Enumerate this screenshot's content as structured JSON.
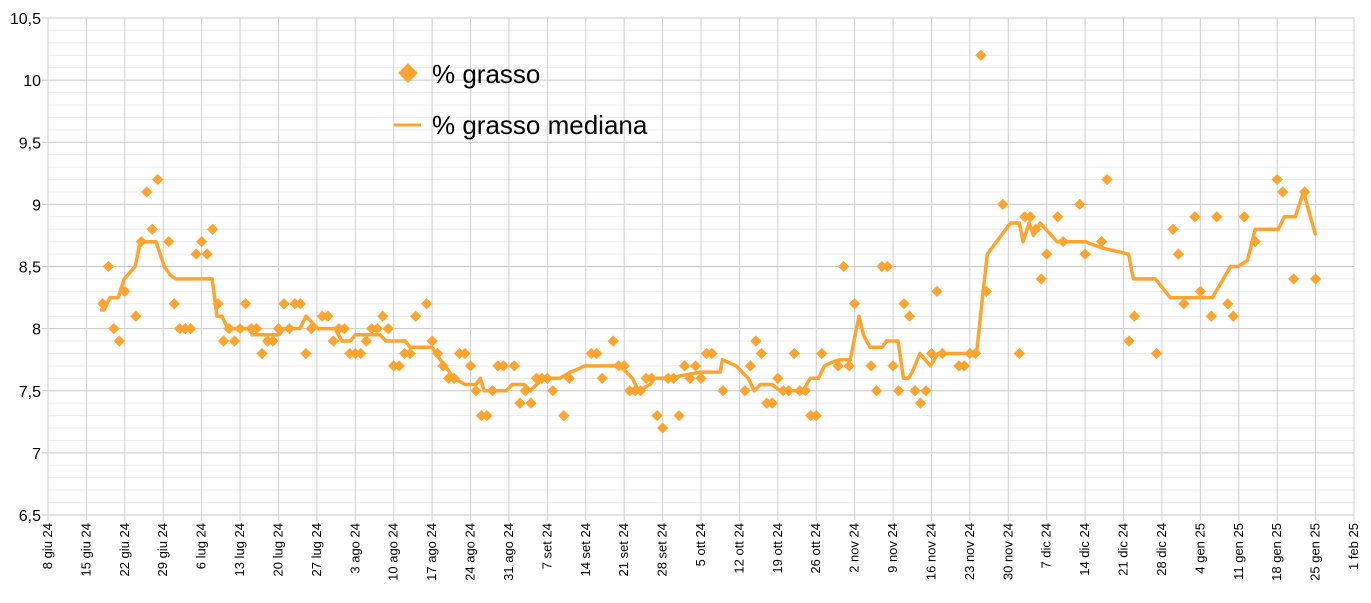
{
  "chart_data": {
    "type": "scatter+line",
    "title": "",
    "xlabel": "",
    "ylabel": "",
    "x_unit": "days since 8 giu 24",
    "xlim": [
      0,
      238
    ],
    "ylim": [
      6.5,
      10.5
    ],
    "y_major_step": 0.5,
    "y_minor_step": 0.1,
    "grid": true,
    "legend_position": "top-center-left",
    "color": "#ffa431",
    "y_tick_labels": [
      "6,5",
      "7",
      "7,5",
      "8",
      "8,5",
      "9",
      "9,5",
      "10",
      "10,5"
    ],
    "x_tick_labels": [
      "8 giu 24",
      "15 giu 24",
      "22 giu 24",
      "29 giu 24",
      "6 lug 24",
      "13 lug 24",
      "20 lug 24",
      "27 lug 24",
      "3 ago 24",
      "10 ago 24",
      "17 ago 24",
      "24 ago 24",
      "31 ago 24",
      "7 set 24",
      "14 set 24",
      "21 set 24",
      "28 set 24",
      "5 ott 24",
      "12 ott 24",
      "19 ott 24",
      "26 ott 24",
      "2 nov 24",
      "9 nov 24",
      "16 nov 24",
      "23 nov 24",
      "30 nov 24",
      "7 dic 24",
      "14 dic 24",
      "21 dic 24",
      "28 dic 24",
      "4 gen 25",
      "11 gen 25",
      "18 gen 25",
      "25 gen 25",
      "1 feb 25"
    ],
    "series": [
      {
        "name": "% grasso",
        "kind": "scatter",
        "marker": "diamond",
        "points": [
          [
            10,
            8.2
          ],
          [
            11,
            8.5
          ],
          [
            12,
            8.0
          ],
          [
            13,
            7.9
          ],
          [
            14,
            8.3
          ],
          [
            16,
            8.1
          ],
          [
            17,
            8.7
          ],
          [
            18,
            9.1
          ],
          [
            19,
            8.8
          ],
          [
            20,
            9.2
          ],
          [
            22,
            8.7
          ],
          [
            23,
            8.2
          ],
          [
            24,
            8.0
          ],
          [
            25,
            8.0
          ],
          [
            26,
            8.0
          ],
          [
            27,
            8.6
          ],
          [
            28,
            8.7
          ],
          [
            29,
            8.6
          ],
          [
            30,
            8.8
          ],
          [
            31,
            8.2
          ],
          [
            32,
            7.9
          ],
          [
            33,
            8.0
          ],
          [
            34,
            7.9
          ],
          [
            35,
            8.0
          ],
          [
            36,
            8.2
          ],
          [
            37,
            8.0
          ],
          [
            38,
            8.0
          ],
          [
            39,
            7.8
          ],
          [
            40,
            7.9
          ],
          [
            41,
            7.9
          ],
          [
            42,
            8.0
          ],
          [
            43,
            8.2
          ],
          [
            44,
            8.0
          ],
          [
            45,
            8.2
          ],
          [
            46,
            8.2
          ],
          [
            47,
            7.8
          ],
          [
            48,
            8.0
          ],
          [
            50,
            8.1
          ],
          [
            51,
            8.1
          ],
          [
            52,
            7.9
          ],
          [
            53,
            8.0
          ],
          [
            54,
            8.0
          ],
          [
            55,
            7.8
          ],
          [
            56,
            7.8
          ],
          [
            57,
            7.8
          ],
          [
            58,
            7.9
          ],
          [
            59,
            8.0
          ],
          [
            60,
            8.0
          ],
          [
            61,
            8.1
          ],
          [
            62,
            8.0
          ],
          [
            63,
            7.7
          ],
          [
            64,
            7.7
          ],
          [
            65,
            7.8
          ],
          [
            66,
            7.8
          ],
          [
            67,
            8.1
          ],
          [
            69,
            8.2
          ],
          [
            70,
            7.9
          ],
          [
            71,
            7.8
          ],
          [
            72,
            7.7
          ],
          [
            73,
            7.6
          ],
          [
            74,
            7.6
          ],
          [
            75,
            7.8
          ],
          [
            76,
            7.8
          ],
          [
            77,
            7.7
          ],
          [
            78,
            7.5
          ],
          [
            79,
            7.3
          ],
          [
            80,
            7.3
          ],
          [
            81,
            7.5
          ],
          [
            82,
            7.7
          ],
          [
            83,
            7.7
          ],
          [
            85,
            7.7
          ],
          [
            86,
            7.4
          ],
          [
            87,
            7.5
          ],
          [
            88,
            7.4
          ],
          [
            89,
            7.6
          ],
          [
            90,
            7.6
          ],
          [
            91,
            7.6
          ],
          [
            92,
            7.5
          ],
          [
            94,
            7.3
          ],
          [
            95,
            7.6
          ],
          [
            99,
            7.8
          ],
          [
            100,
            7.8
          ],
          [
            101,
            7.6
          ],
          [
            103,
            7.9
          ],
          [
            104,
            7.7
          ],
          [
            105,
            7.7
          ],
          [
            106,
            7.5
          ],
          [
            107,
            7.5
          ],
          [
            108,
            7.5
          ],
          [
            109,
            7.6
          ],
          [
            110,
            7.6
          ],
          [
            111,
            7.3
          ],
          [
            112,
            7.2
          ],
          [
            113,
            7.6
          ],
          [
            114,
            7.6
          ],
          [
            115,
            7.3
          ],
          [
            116,
            7.7
          ],
          [
            117,
            7.6
          ],
          [
            118,
            7.7
          ],
          [
            119,
            7.6
          ],
          [
            120,
            7.8
          ],
          [
            121,
            7.8
          ],
          [
            123,
            7.5
          ],
          [
            127,
            7.5
          ],
          [
            128,
            7.7
          ],
          [
            129,
            7.9
          ],
          [
            130,
            7.8
          ],
          [
            131,
            7.4
          ],
          [
            132,
            7.4
          ],
          [
            133,
            7.6
          ],
          [
            134,
            7.5
          ],
          [
            135,
            7.5
          ],
          [
            136,
            7.8
          ],
          [
            137,
            7.5
          ],
          [
            138,
            7.5
          ],
          [
            139,
            7.3
          ],
          [
            140,
            7.3
          ],
          [
            141,
            7.8
          ],
          [
            144,
            7.7
          ],
          [
            145,
            8.5
          ],
          [
            146,
            7.7
          ],
          [
            147,
            8.2
          ],
          [
            150,
            7.7
          ],
          [
            151,
            7.5
          ],
          [
            152,
            8.5
          ],
          [
            153,
            8.5
          ],
          [
            154,
            7.7
          ],
          [
            155,
            7.5
          ],
          [
            156,
            8.2
          ],
          [
            157,
            8.1
          ],
          [
            158,
            7.5
          ],
          [
            159,
            7.4
          ],
          [
            160,
            7.5
          ],
          [
            161,
            7.8
          ],
          [
            162,
            8.3
          ],
          [
            163,
            7.8
          ],
          [
            166,
            7.7
          ],
          [
            167,
            7.7
          ],
          [
            168,
            7.8
          ],
          [
            169,
            7.8
          ],
          [
            170,
            10.2
          ],
          [
            171,
            8.3
          ],
          [
            174,
            9.0
          ],
          [
            177,
            7.8
          ],
          [
            178,
            8.9
          ],
          [
            179,
            8.9
          ],
          [
            180,
            8.8
          ],
          [
            181,
            8.4
          ],
          [
            182,
            8.6
          ],
          [
            184,
            8.9
          ],
          [
            185,
            8.7
          ],
          [
            188,
            9.0
          ],
          [
            189,
            8.6
          ],
          [
            192,
            8.7
          ],
          [
            193,
            9.2
          ],
          [
            197,
            7.9
          ],
          [
            198,
            8.1
          ],
          [
            202,
            7.8
          ],
          [
            205,
            8.8
          ],
          [
            206,
            8.6
          ],
          [
            207,
            8.2
          ],
          [
            209,
            8.9
          ],
          [
            210,
            8.3
          ],
          [
            212,
            8.1
          ],
          [
            213,
            8.9
          ],
          [
            215,
            8.2
          ],
          [
            216,
            8.1
          ],
          [
            218,
            8.9
          ],
          [
            220,
            8.7
          ],
          [
            224,
            9.2
          ],
          [
            225,
            9.1
          ],
          [
            227,
            8.4
          ],
          [
            229,
            9.1
          ],
          [
            231,
            8.4
          ]
        ]
      },
      {
        "name": "% grasso mediana",
        "kind": "line",
        "points": [
          [
            9.5,
            8.15
          ],
          [
            10.2,
            8.15
          ],
          [
            11.3,
            8.25
          ],
          [
            12.8,
            8.25
          ],
          [
            13.9,
            8.4
          ],
          [
            15.9,
            8.5
          ],
          [
            16.8,
            8.7
          ],
          [
            19.7,
            8.7
          ],
          [
            21.2,
            8.5
          ],
          [
            22.3,
            8.43
          ],
          [
            23.3,
            8.4
          ],
          [
            29.9,
            8.4
          ],
          [
            30.8,
            8.1
          ],
          [
            31.7,
            8.1
          ],
          [
            32.8,
            8.0
          ],
          [
            37.0,
            8.0
          ],
          [
            37.2,
            7.95
          ],
          [
            42.1,
            7.95
          ],
          [
            43.0,
            8.0
          ],
          [
            45.9,
            8.0
          ],
          [
            47.0,
            8.1
          ],
          [
            48.1,
            8.05
          ],
          [
            49.2,
            8.0
          ],
          [
            52.3,
            8.0
          ],
          [
            53.6,
            7.9
          ],
          [
            55.1,
            7.9
          ],
          [
            56.0,
            7.95
          ],
          [
            60.5,
            7.95
          ],
          [
            61.6,
            7.9
          ],
          [
            65.1,
            7.9
          ],
          [
            66.0,
            7.85
          ],
          [
            70.0,
            7.85
          ],
          [
            71.5,
            7.75
          ],
          [
            74.0,
            7.6
          ],
          [
            76.0,
            7.55
          ],
          [
            78.0,
            7.55
          ],
          [
            78.8,
            7.6
          ],
          [
            79.5,
            7.5
          ],
          [
            83.5,
            7.5
          ],
          [
            84.6,
            7.55
          ],
          [
            86.8,
            7.55
          ],
          [
            87.9,
            7.5
          ],
          [
            90.2,
            7.6
          ],
          [
            93.3,
            7.6
          ],
          [
            95.2,
            7.65
          ],
          [
            97.9,
            7.7
          ],
          [
            104.3,
            7.7
          ],
          [
            106.5,
            7.6
          ],
          [
            107.6,
            7.5
          ],
          [
            109.7,
            7.55
          ],
          [
            110.6,
            7.6
          ],
          [
            113.9,
            7.6
          ],
          [
            115.2,
            7.62
          ],
          [
            118.9,
            7.65
          ],
          [
            122.5,
            7.65
          ],
          [
            122.9,
            7.75
          ],
          [
            125.4,
            7.7
          ],
          [
            127.6,
            7.6
          ],
          [
            128.7,
            7.5
          ],
          [
            129.8,
            7.55
          ],
          [
            132.0,
            7.55
          ],
          [
            133.4,
            7.5
          ],
          [
            137.6,
            7.5
          ],
          [
            138.9,
            7.6
          ],
          [
            140.4,
            7.6
          ],
          [
            141.5,
            7.7
          ],
          [
            142.9,
            7.73
          ],
          [
            144.4,
            7.75
          ],
          [
            146.2,
            7.75
          ],
          [
            147.1,
            7.95
          ],
          [
            147.8,
            8.1
          ],
          [
            148.6,
            7.95
          ],
          [
            149.8,
            7.85
          ],
          [
            152.0,
            7.85
          ],
          [
            152.8,
            7.9
          ],
          [
            154.9,
            7.9
          ],
          [
            155.9,
            7.6
          ],
          [
            156.8,
            7.6
          ],
          [
            157.5,
            7.65
          ],
          [
            158.9,
            7.8
          ],
          [
            160.8,
            7.7
          ],
          [
            162.2,
            7.8
          ],
          [
            169.2,
            7.8
          ],
          [
            169.7,
            8.0
          ],
          [
            170.4,
            8.3
          ],
          [
            171.2,
            8.6
          ],
          [
            175.4,
            8.85
          ],
          [
            177.0,
            8.85
          ],
          [
            177.7,
            8.7
          ],
          [
            178.8,
            8.85
          ],
          [
            179.6,
            8.75
          ],
          [
            180.8,
            8.85
          ],
          [
            183.9,
            8.7
          ],
          [
            186.3,
            8.7
          ],
          [
            189.0,
            8.7
          ],
          [
            192.1,
            8.65
          ],
          [
            196.9,
            8.6
          ],
          [
            197.8,
            8.4
          ],
          [
            201.8,
            8.4
          ],
          [
            204.5,
            8.25
          ],
          [
            212.2,
            8.25
          ],
          [
            215.5,
            8.5
          ],
          [
            216.9,
            8.5
          ],
          [
            218.6,
            8.55
          ],
          [
            220.0,
            8.8
          ],
          [
            224.2,
            8.8
          ],
          [
            225.3,
            8.9
          ],
          [
            227.3,
            8.9
          ],
          [
            228.8,
            9.1
          ],
          [
            231.0,
            8.75
          ]
        ]
      }
    ]
  }
}
